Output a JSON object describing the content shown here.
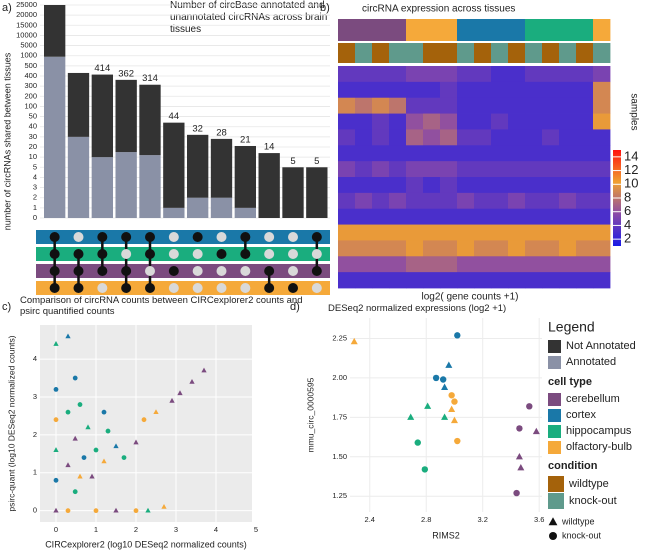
{
  "chart_data": [
    {
      "type": "upset",
      "label": "a)",
      "title": "Number of circBase annotated and unannotated circRNAs across brain tissues",
      "ylabel": "number of circRNAs shared between tissues",
      "yscale": "broken",
      "ylim": [
        0,
        25000
      ],
      "yticks": [
        0,
        1,
        2,
        3,
        4,
        5,
        10,
        20,
        30,
        40,
        50,
        100,
        200,
        300,
        400,
        500,
        1000,
        5000,
        10000,
        15000,
        20000,
        25000
      ],
      "categories": [
        null,
        null,
        null,
        null,
        null,
        null,
        null,
        null,
        null,
        null,
        null,
        null
      ],
      "series": [
        {
          "name": "Annotated",
          "color": "#8a91a6",
          "values": [
            950,
            30,
            10,
            15,
            12,
            1,
            2,
            2,
            1,
            0,
            0,
            0
          ]
        },
        {
          "name": "Not Annotated",
          "color": "#333333",
          "values": [
            24050,
            400,
            404,
            347,
            302,
            43,
            30,
            26,
            20,
            14,
            5,
            5
          ]
        }
      ],
      "totals": [
        null,
        null,
        414,
        362,
        314,
        44,
        32,
        28,
        21,
        14,
        5,
        5
      ],
      "set_colors": [
        "#1a78a8",
        "#1aad7e",
        "#7b4b7f",
        "#f5a93a"
      ],
      "matrix": [
        [
          1,
          1,
          1,
          1
        ],
        [
          0,
          1,
          1,
          1
        ],
        [
          1,
          1,
          1,
          0
        ],
        [
          1,
          0,
          1,
          1
        ],
        [
          1,
          1,
          0,
          1
        ],
        [
          0,
          0,
          1,
          0
        ],
        [
          1,
          0,
          0,
          0
        ],
        [
          0,
          1,
          0,
          0
        ],
        [
          1,
          1,
          0,
          0
        ],
        [
          0,
          0,
          1,
          1
        ],
        [
          0,
          0,
          0,
          1
        ],
        [
          1,
          0,
          1,
          0
        ]
      ]
    },
    {
      "type": "heatmap",
      "label": "b)",
      "title": "circRNA expression across tissues",
      "xlabel": "log2( gene counts +1)",
      "annotation_label": "samples",
      "column_cell_type": [
        0,
        0,
        0,
        0,
        3,
        3,
        3,
        1,
        1,
        1,
        1,
        2,
        2,
        2,
        2,
        3
      ],
      "column_condition": [
        0,
        1,
        0,
        1,
        1,
        0,
        0,
        1,
        0,
        1,
        0,
        1,
        0,
        1,
        0,
        1
      ],
      "values": [
        [
          4,
          4,
          4,
          4,
          5,
          5,
          5,
          4,
          4,
          3,
          3,
          4,
          4,
          4,
          4,
          5
        ],
        [
          3,
          3,
          3,
          3,
          3,
          3,
          4,
          3,
          3,
          3,
          3,
          3,
          3,
          3,
          3,
          9
        ],
        [
          9,
          8,
          9,
          8,
          4,
          4,
          4,
          3,
          3,
          3,
          3,
          3,
          3,
          3,
          3,
          9
        ],
        [
          3,
          3,
          4,
          3,
          6,
          7,
          6,
          3,
          3,
          4,
          3,
          3,
          3,
          3,
          3,
          10
        ],
        [
          4,
          3,
          4,
          3,
          7,
          6,
          7,
          4,
          4,
          3,
          3,
          3,
          4,
          3,
          3,
          3
        ],
        [
          3,
          3,
          3,
          3,
          3,
          3,
          3,
          3,
          3,
          3,
          3,
          3,
          3,
          3,
          3,
          3
        ],
        [
          5,
          4,
          5,
          4,
          5,
          5,
          5,
          4,
          4,
          4,
          4,
          4,
          4,
          4,
          4,
          4
        ],
        [
          3,
          3,
          3,
          3,
          4,
          3,
          4,
          3,
          3,
          3,
          3,
          3,
          3,
          3,
          3,
          3
        ],
        [
          4,
          5,
          4,
          5,
          4,
          4,
          4,
          5,
          4,
          4,
          5,
          4,
          4,
          5,
          4,
          4
        ],
        [
          3,
          3,
          3,
          3,
          3,
          3,
          3,
          3,
          3,
          3,
          3,
          3,
          3,
          3,
          3,
          3
        ],
        [
          10,
          10,
          10,
          10,
          10,
          10,
          10,
          10,
          10,
          10,
          10,
          10,
          10,
          10,
          10,
          10
        ],
        [
          9,
          9,
          9,
          9,
          10,
          9,
          9,
          10,
          9,
          9,
          10,
          9,
          9,
          10,
          9,
          9
        ],
        [
          6,
          6,
          6,
          6,
          7,
          7,
          7,
          6,
          6,
          6,
          6,
          6,
          6,
          6,
          6,
          6
        ],
        [
          3,
          3,
          3,
          3,
          3,
          3,
          3,
          3,
          3,
          3,
          3,
          3,
          3,
          3,
          3,
          3
        ]
      ],
      "colorbar": {
        "lim": [
          1,
          15
        ],
        "ticks": [
          2,
          4,
          6,
          8,
          10,
          12,
          14
        ],
        "colors": [
          "#1a1ae6",
          "#8a4aa8",
          "#f0a030",
          "#ff1010"
        ]
      }
    },
    {
      "type": "scatter",
      "label": "c)",
      "title": "Comparison of circRNA counts between CIRCexplorer2 counts and psirc quantified counts",
      "xlabel": "CIRCexplorer2 (log10 DESeq2 normalized counts)",
      "ylabel": "psirc-quant (log10 DESeq2 normalized counts)",
      "xlim": [
        -0.4,
        4.9
      ],
      "ylim": [
        -0.3,
        4.9
      ],
      "xticks": [
        0,
        1,
        2,
        3,
        4,
        5
      ],
      "yticks": [
        0,
        1,
        2,
        3,
        4
      ],
      "grid": true,
      "x": [
        0,
        0,
        0,
        0,
        0,
        0,
        0.3,
        0.3,
        0.3,
        0.3,
        0.48,
        0.48,
        0.48,
        0.6,
        0.6,
        0.7,
        0.9,
        1.0,
        1.2,
        1.3,
        1.5,
        1.7,
        2.0,
        2.2,
        2.5,
        2.9,
        3.1,
        3.4,
        3.7,
        1.0,
        1.5,
        2.0,
        2.7,
        0.8,
        1.2,
        2.3
      ],
      "y": [
        0,
        0.8,
        1.6,
        2.4,
        3.2,
        4.4,
        0,
        1.2,
        2.6,
        4.6,
        0.5,
        1.9,
        3.5,
        0.9,
        2.8,
        1.4,
        0.9,
        1.6,
        1.3,
        2.1,
        1.7,
        1.4,
        1.8,
        2.4,
        2.6,
        2.9,
        3.1,
        3.4,
        3.7,
        0,
        0,
        0,
        0.1,
        2.2,
        2.6,
        0
      ],
      "cell_type": [
        0,
        1,
        2,
        3,
        1,
        2,
        3,
        0,
        2,
        1,
        2,
        0,
        1,
        3,
        2,
        1,
        0,
        2,
        3,
        2,
        1,
        2,
        0,
        3,
        3,
        0,
        0,
        0,
        0,
        3,
        0,
        3,
        3,
        2,
        1,
        2
      ],
      "condition": [
        0,
        1,
        0,
        1,
        1,
        0,
        1,
        0,
        1,
        0,
        1,
        0,
        1,
        0,
        1,
        1,
        0,
        1,
        0,
        1,
        0,
        1,
        0,
        1,
        0,
        0,
        0,
        0,
        0,
        1,
        0,
        1,
        0,
        0,
        1,
        0
      ]
    },
    {
      "type": "scatter",
      "label": "d)",
      "title": "DESeq2 normalized expressions (log2 +1)",
      "xlabel": "RIMS2",
      "ylabel": "mmu_circ_0000595",
      "xlim": [
        2.26,
        3.62
      ],
      "ylim": [
        1.15,
        2.38
      ],
      "xticks": [
        2.4,
        2.8,
        3.2,
        3.6
      ],
      "yticks": [
        1.25,
        {
          "value": 1.5,
          "label": "1.50"
        },
        1.75,
        {
          "value": 2,
          "label": "2.00"
        },
        2.25
      ],
      "grid": true,
      "x": [
        3.02,
        2.96,
        2.93,
        2.87,
        2.92,
        2.69,
        2.81,
        2.74,
        2.79,
        2.93,
        2.98,
        3.0,
        2.98,
        3.0,
        3.02,
        2.29,
        3.53,
        3.46,
        3.58,
        3.46,
        3.47,
        3.44
      ],
      "y": [
        2.27,
        2.08,
        1.94,
        2.0,
        1.99,
        1.75,
        1.82,
        1.59,
        1.42,
        1.75,
        1.89,
        1.85,
        1.8,
        1.73,
        1.6,
        2.23,
        1.82,
        1.68,
        1.66,
        1.5,
        1.43,
        1.27
      ],
      "cell_type": [
        1,
        1,
        1,
        1,
        1,
        2,
        2,
        2,
        2,
        2,
        3,
        3,
        3,
        3,
        3,
        3,
        0,
        0,
        0,
        0,
        0,
        0
      ],
      "condition": [
        1,
        0,
        0,
        1,
        1,
        0,
        0,
        1,
        1,
        0,
        1,
        1,
        0,
        0,
        1,
        0,
        1,
        1,
        0,
        0,
        0,
        1
      ]
    }
  ],
  "legend": {
    "title": "Legend",
    "cell_type_title": "cell type",
    "cell_types": [
      {
        "name": "cerebellum",
        "color": "#7b4b7f"
      },
      {
        "name": "cortex",
        "color": "#1a78a8"
      },
      {
        "name": "hippocampus",
        "color": "#1aad7e"
      },
      {
        "name": "olfactory-bulb",
        "color": "#f5a93a"
      }
    ],
    "condition_title": "condition",
    "conditions": [
      {
        "name": "wildtype",
        "color": "#a4620b",
        "shape": "triangle"
      },
      {
        "name": "knock-out",
        "color": "#5f9a8c",
        "shape": "circle"
      }
    ]
  }
}
